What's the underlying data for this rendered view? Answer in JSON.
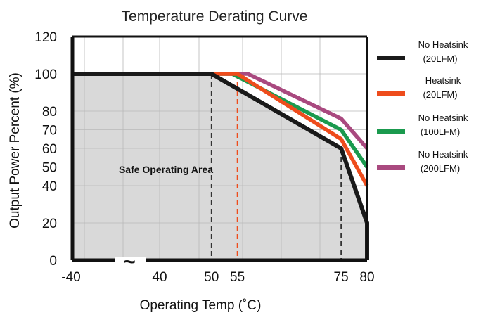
{
  "chart_data": {
    "type": "line",
    "title": "Temperature Derating Curve",
    "xlabel": "Operating Temp (˚C)",
    "ylabel": "Output Power Percent  (%)",
    "x_ticks": [
      {
        "label": "-40",
        "value": -40
      },
      {
        "label": "40",
        "value": 40
      },
      {
        "label": "50",
        "value": 50
      },
      {
        "label": "55",
        "value": 55
      },
      {
        "label": "75",
        "value": 75
      },
      {
        "label": "80",
        "value": 80
      }
    ],
    "y_ticks": [
      0,
      20,
      40,
      50,
      60,
      70,
      80,
      100,
      120
    ],
    "ylim": [
      0,
      120
    ],
    "grid": true,
    "axis_break": "~",
    "annotation": "Safe Operating Area",
    "legend_position": "right",
    "series": [
      {
        "name": "No Heatsink",
        "sub": "(20LFM)",
        "color": "#1a1a1a",
        "points": [
          [
            -40,
            100
          ],
          [
            50,
            100
          ],
          [
            75,
            60
          ],
          [
            80,
            20
          ],
          [
            80,
            0
          ]
        ]
      },
      {
        "name": "Heatsink",
        "sub": "(20LFM)",
        "color": "#ee4c1c",
        "points": [
          [
            50,
            100
          ],
          [
            55,
            100
          ],
          [
            75,
            65
          ],
          [
            80,
            40
          ]
        ]
      },
      {
        "name": "No Heatsink",
        "sub": "(100LFM)",
        "color": "#1a9a4e",
        "points": [
          [
            50,
            100
          ],
          [
            54,
            100
          ],
          [
            75,
            70
          ],
          [
            80,
            50
          ]
        ]
      },
      {
        "name": "No Heatsink",
        "sub": "(200LFM)",
        "color": "#a9497f",
        "points": [
          [
            50,
            100
          ],
          [
            57,
            100
          ],
          [
            75,
            76
          ],
          [
            80,
            60
          ]
        ]
      }
    ],
    "reference_lines": [
      {
        "x": 50,
        "color": "#333333"
      },
      {
        "x": 55,
        "color": "#ee4c1c"
      },
      {
        "x": 75,
        "color": "#333333"
      }
    ]
  }
}
